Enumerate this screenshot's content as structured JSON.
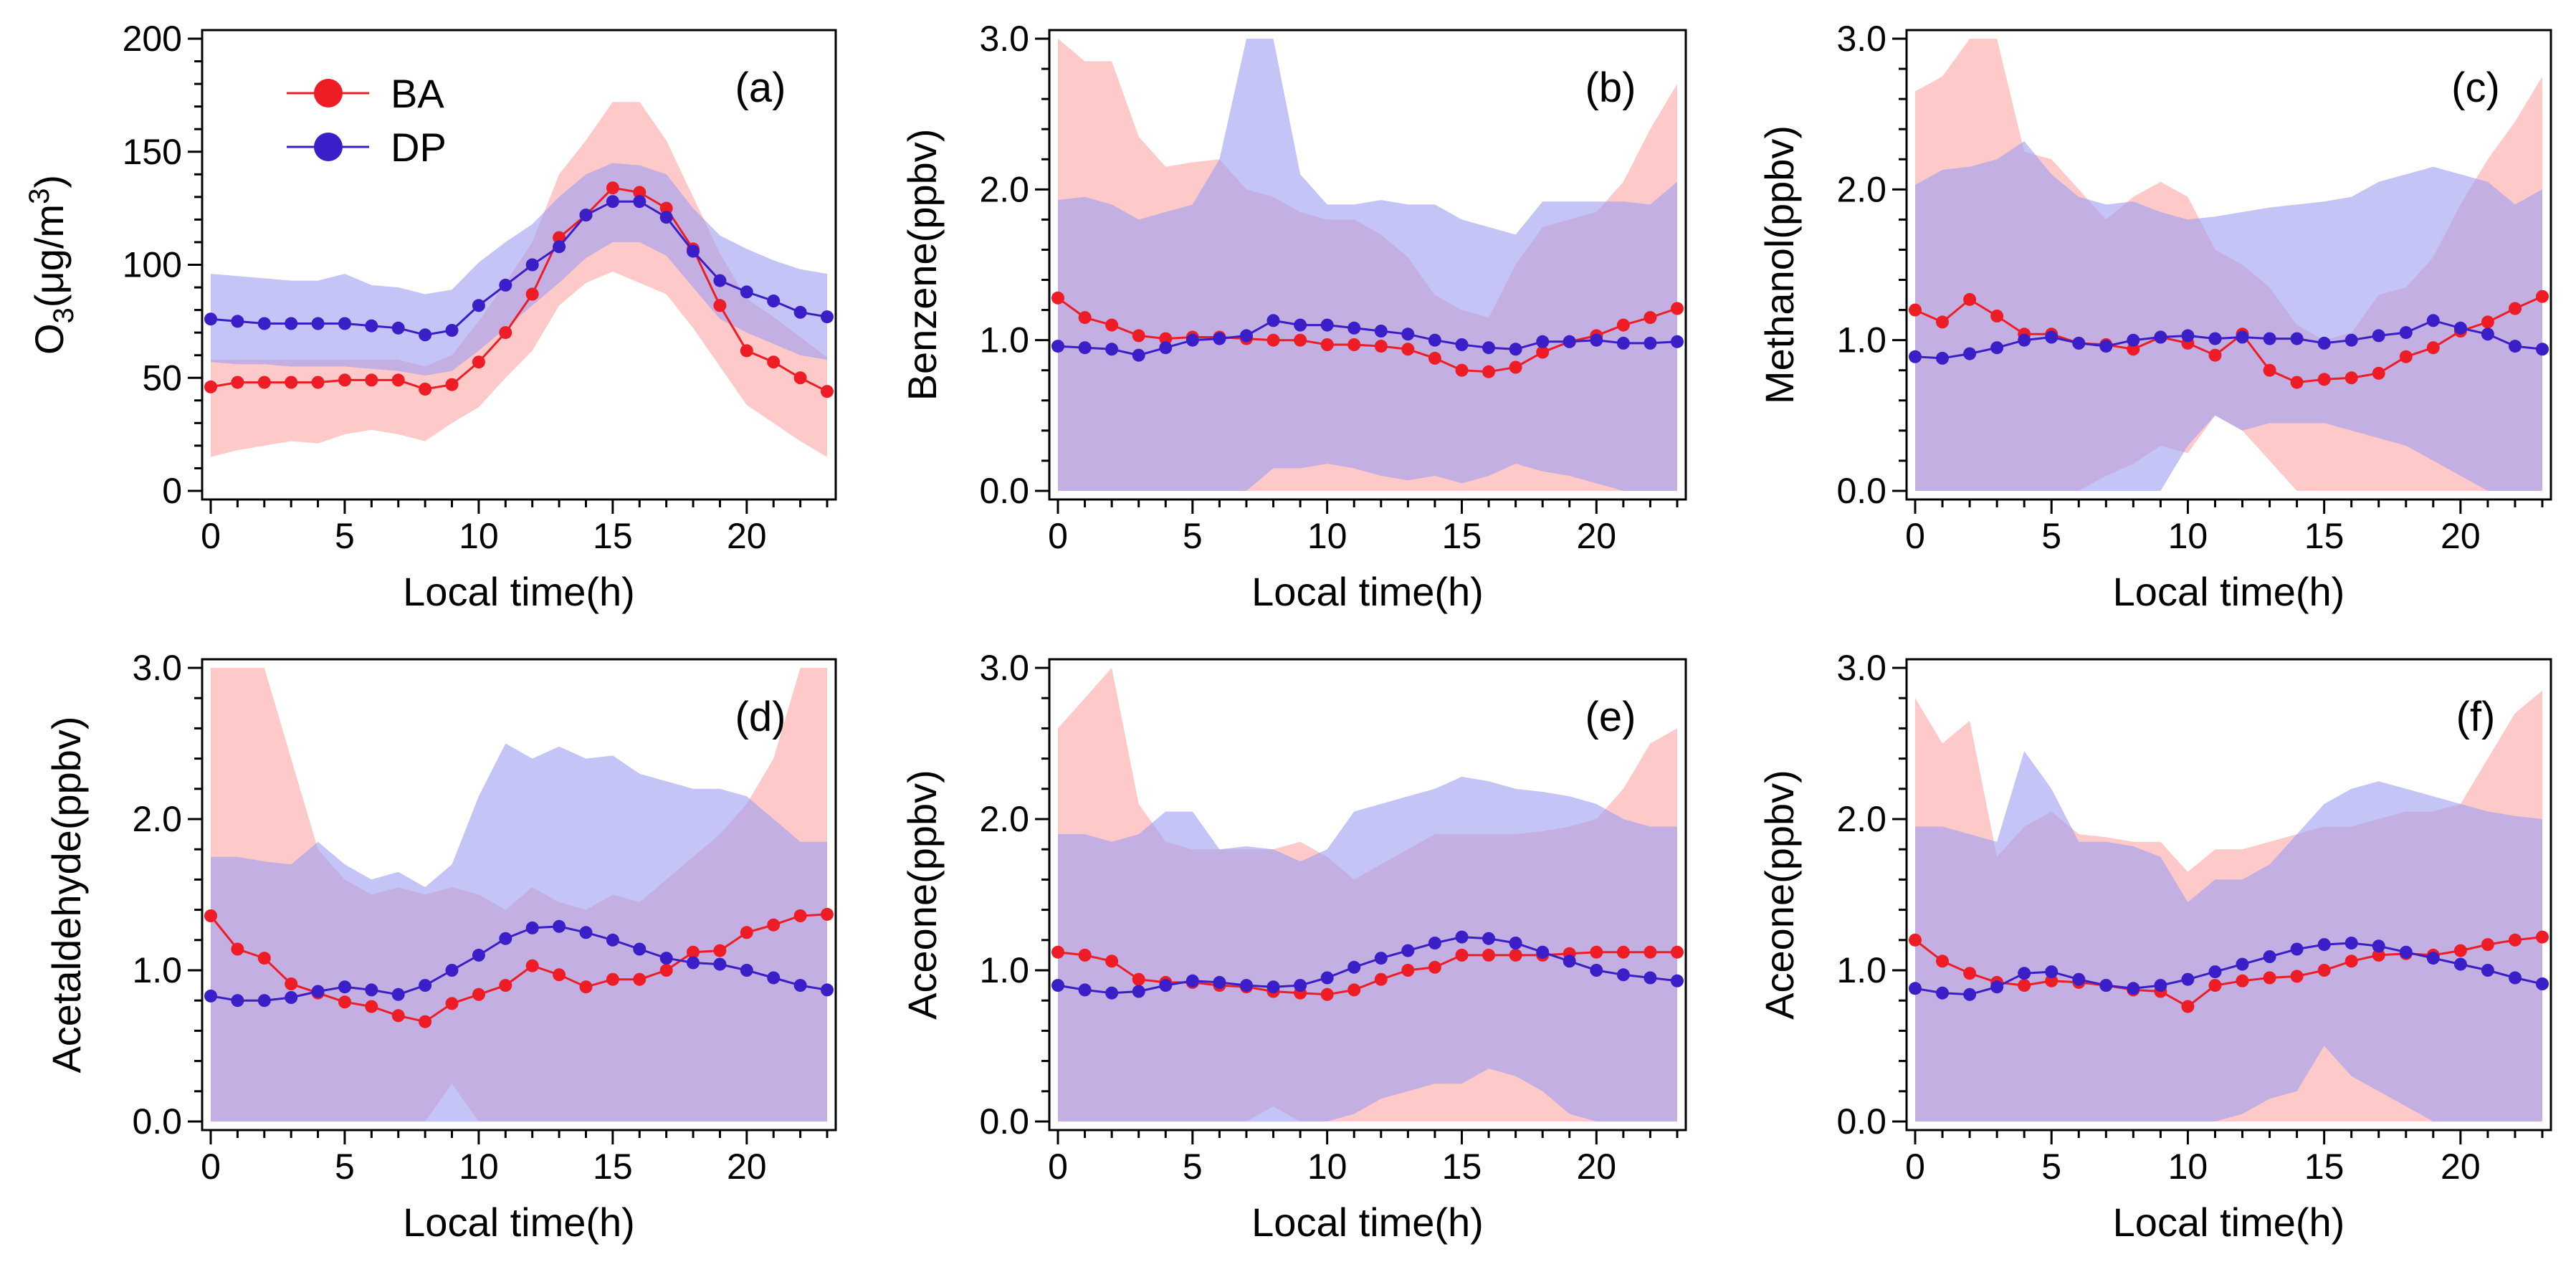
{
  "colors": {
    "BA": "#ee1c25",
    "DP": "#3a1ec8",
    "BA_band": "#fba8a8",
    "DP_band": "#9f9ff0"
  },
  "legend": {
    "BA": "BA",
    "DP": "DP"
  },
  "chart_data": [
    {
      "panel": "(a)",
      "type": "line",
      "title": "",
      "xlabel": "Local time(h)",
      "ylabel": "O3(μg/m3)",
      "ylabel_parts": {
        "a": "O",
        "sub": "3",
        "b": "(μg/m",
        "sup": "3",
        "c": ")"
      },
      "xlim": [
        0,
        23
      ],
      "ylim": [
        0,
        200
      ],
      "xticks": [
        0,
        5,
        10,
        15,
        20
      ],
      "yticks": [
        0,
        50,
        100,
        150,
        200
      ],
      "ytick_labels": [
        "0",
        "50",
        "100",
        "150",
        "200"
      ],
      "series": [
        {
          "name": "BA",
          "values": [
            46,
            48,
            48,
            48,
            48,
            49,
            49,
            49,
            45,
            47,
            57,
            70,
            87,
            112,
            122,
            134,
            132,
            125,
            107,
            82,
            62,
            57,
            50,
            44
          ],
          "upper": [
            58,
            58,
            58,
            58,
            58,
            58,
            58,
            58,
            55,
            60,
            75,
            92,
            110,
            140,
            155,
            172,
            172,
            155,
            130,
            105,
            85,
            77,
            68,
            59
          ],
          "lower": [
            15,
            18,
            20,
            22,
            21,
            25,
            27,
            25,
            22,
            30,
            37,
            50,
            62,
            82,
            92,
            97,
            92,
            87,
            72,
            55,
            38,
            30,
            22,
            15
          ]
        },
        {
          "name": "DP",
          "values": [
            76,
            75,
            74,
            74,
            74,
            74,
            73,
            72,
            69,
            71,
            82,
            91,
            100,
            108,
            122,
            128,
            128,
            121,
            106,
            93,
            88,
            84,
            79,
            77
          ],
          "upper": [
            96,
            95,
            94,
            93,
            93,
            96,
            91,
            90,
            87,
            89,
            101,
            110,
            118,
            130,
            140,
            145,
            144,
            140,
            125,
            113,
            107,
            102,
            98,
            96
          ],
          "lower": [
            57,
            56,
            56,
            55,
            55,
            55,
            54,
            53,
            51,
            53,
            62,
            72,
            82,
            92,
            103,
            110,
            110,
            104,
            90,
            76,
            70,
            65,
            60,
            58
          ]
        }
      ]
    },
    {
      "panel": "(b)",
      "type": "line",
      "title": "",
      "xlabel": "Local time(h)",
      "ylabel": "Benzene(ppbv)",
      "xlim": [
        0,
        23
      ],
      "ylim": [
        0,
        3
      ],
      "xticks": [
        0,
        5,
        10,
        15,
        20
      ],
      "yticks": [
        0,
        1,
        2,
        3
      ],
      "ytick_labels": [
        "0.0",
        "1.0",
        "2.0",
        "3.0"
      ],
      "series": [
        {
          "name": "BA",
          "values": [
            1.28,
            1.15,
            1.1,
            1.03,
            1.01,
            1.02,
            1.02,
            1.01,
            1.0,
            1.0,
            0.97,
            0.97,
            0.96,
            0.94,
            0.88,
            0.8,
            0.79,
            0.82,
            0.92,
            0.99,
            1.03,
            1.1,
            1.15,
            1.21
          ],
          "upper": [
            3.0,
            2.85,
            2.85,
            2.35,
            2.15,
            2.18,
            2.2,
            2.0,
            1.95,
            1.85,
            1.8,
            1.8,
            1.7,
            1.55,
            1.3,
            1.2,
            1.15,
            1.5,
            1.75,
            1.8,
            1.85,
            2.05,
            2.4,
            2.7
          ],
          "lower": [
            0.0,
            0.0,
            0.0,
            0.0,
            0.0,
            0.0,
            0.0,
            0.0,
            0.0,
            0.0,
            0.0,
            0.0,
            0.0,
            0.0,
            0.0,
            0.0,
            0.0,
            0.0,
            0.0,
            0.0,
            0.0,
            0.0,
            0.0,
            0.0
          ]
        },
        {
          "name": "DP",
          "values": [
            0.96,
            0.95,
            0.94,
            0.9,
            0.95,
            1.0,
            1.01,
            1.03,
            1.13,
            1.1,
            1.1,
            1.08,
            1.06,
            1.04,
            1.0,
            0.97,
            0.95,
            0.94,
            0.99,
            0.99,
            1.0,
            0.98,
            0.98,
            0.99
          ],
          "upper": [
            1.93,
            1.95,
            1.9,
            1.8,
            1.85,
            1.9,
            2.2,
            3.0,
            3.0,
            2.1,
            1.9,
            1.9,
            1.93,
            1.9,
            1.9,
            1.8,
            1.75,
            1.7,
            1.92,
            1.92,
            1.92,
            1.92,
            1.9,
            2.05
          ],
          "lower": [
            0.0,
            0.0,
            0.0,
            0.0,
            0.0,
            0.0,
            0.0,
            0.0,
            0.15,
            0.15,
            0.18,
            0.15,
            0.1,
            0.07,
            0.1,
            0.05,
            0.1,
            0.18,
            0.13,
            0.1,
            0.05,
            0.0,
            0.0,
            0.0
          ]
        }
      ]
    },
    {
      "panel": "(c)",
      "type": "line",
      "title": "",
      "xlabel": "Local time(h)",
      "ylabel": "Methanol(ppbv)",
      "xlim": [
        0,
        23
      ],
      "ylim": [
        0,
        3
      ],
      "xticks": [
        0,
        5,
        10,
        15,
        20
      ],
      "yticks": [
        0,
        1,
        2,
        3
      ],
      "ytick_labels": [
        "0.0",
        "1.0",
        "2.0",
        "3.0"
      ],
      "series": [
        {
          "name": "BA",
          "values": [
            1.2,
            1.12,
            1.27,
            1.16,
            1.04,
            1.04,
            0.98,
            0.97,
            0.94,
            1.02,
            0.98,
            0.9,
            1.04,
            0.8,
            0.72,
            0.74,
            0.75,
            0.78,
            0.89,
            0.95,
            1.06,
            1.12,
            1.21,
            1.29
          ],
          "upper": [
            2.65,
            2.75,
            3.0,
            3.0,
            2.25,
            2.2,
            2.0,
            1.8,
            1.95,
            2.05,
            1.95,
            1.6,
            1.5,
            1.35,
            1.1,
            1.0,
            1.05,
            1.3,
            1.35,
            1.55,
            1.9,
            2.2,
            2.45,
            2.75
          ],
          "lower": [
            0.0,
            0.0,
            0.0,
            0.0,
            0.0,
            0.0,
            0.0,
            0.1,
            0.18,
            0.3,
            0.25,
            0.5,
            0.4,
            0.2,
            0.0,
            0.0,
            0.0,
            0.0,
            0.0,
            0.0,
            0.0,
            0.0,
            0.0,
            0.0
          ]
        },
        {
          "name": "DP",
          "values": [
            0.89,
            0.88,
            0.91,
            0.95,
            1.0,
            1.02,
            0.98,
            0.96,
            1.0,
            1.02,
            1.03,
            1.01,
            1.02,
            1.01,
            1.01,
            0.98,
            1.0,
            1.03,
            1.05,
            1.13,
            1.08,
            1.04,
            0.96,
            0.94
          ],
          "upper": [
            2.03,
            2.13,
            2.15,
            2.2,
            2.32,
            2.1,
            1.95,
            1.9,
            1.92,
            1.85,
            1.8,
            1.82,
            1.85,
            1.88,
            1.9,
            1.92,
            1.95,
            2.05,
            2.1,
            2.15,
            2.1,
            2.05,
            1.9,
            2.0
          ],
          "lower": [
            0.0,
            0.0,
            0.0,
            0.0,
            0.0,
            0.0,
            0.0,
            0.0,
            0.0,
            0.0,
            0.3,
            0.5,
            0.4,
            0.45,
            0.45,
            0.45,
            0.4,
            0.35,
            0.3,
            0.2,
            0.1,
            0.0,
            0.0,
            0.0
          ]
        }
      ]
    },
    {
      "panel": "(d)",
      "type": "line",
      "title": "",
      "xlabel": "Local time(h)",
      "ylabel": "Acetaldehyde(ppbv)",
      "xlim": [
        0,
        23
      ],
      "ylim": [
        0,
        3
      ],
      "xticks": [
        0,
        5,
        10,
        15,
        20
      ],
      "yticks": [
        0,
        1,
        2,
        3
      ],
      "ytick_labels": [
        "0.0",
        "1.0",
        "2.0",
        "3.0"
      ],
      "series": [
        {
          "name": "BA",
          "values": [
            1.36,
            1.14,
            1.08,
            0.91,
            0.85,
            0.79,
            0.76,
            0.7,
            0.66,
            0.78,
            0.84,
            0.9,
            1.03,
            0.97,
            0.89,
            0.94,
            0.94,
            1.0,
            1.12,
            1.13,
            1.25,
            1.3,
            1.36,
            1.37
          ],
          "upper": [
            3.0,
            3.0,
            3.0,
            2.4,
            1.8,
            1.6,
            1.5,
            1.55,
            1.5,
            1.55,
            1.5,
            1.4,
            1.55,
            1.45,
            1.4,
            1.5,
            1.45,
            1.6,
            1.75,
            1.9,
            2.1,
            2.4,
            3.0,
            3.0
          ],
          "lower": [
            0.0,
            0.0,
            0.0,
            0.0,
            0.0,
            0.0,
            0.0,
            0.0,
            0.0,
            0.25,
            0.0,
            0.0,
            0.0,
            0.0,
            0.0,
            0.0,
            0.0,
            0.0,
            0.0,
            0.0,
            0.0,
            0.0,
            0.0,
            0.0
          ]
        },
        {
          "name": "DP",
          "values": [
            0.83,
            0.8,
            0.8,
            0.82,
            0.86,
            0.89,
            0.87,
            0.84,
            0.9,
            1.0,
            1.1,
            1.21,
            1.28,
            1.29,
            1.25,
            1.2,
            1.14,
            1.08,
            1.05,
            1.04,
            1.0,
            0.95,
            0.9,
            0.87
          ],
          "upper": [
            1.75,
            1.75,
            1.72,
            1.7,
            1.85,
            1.7,
            1.6,
            1.65,
            1.55,
            1.7,
            2.15,
            2.5,
            2.4,
            2.48,
            2.4,
            2.42,
            2.3,
            2.25,
            2.2,
            2.2,
            2.15,
            2.0,
            1.85,
            1.85
          ]
        }
      ]
    },
    {
      "panel": "(e)",
      "type": "line",
      "title": "",
      "xlabel": "Local time(h)",
      "ylabel": "Aceone(ppbv)",
      "xlim": [
        0,
        23
      ],
      "ylim": [
        0,
        3
      ],
      "xticks": [
        0,
        5,
        10,
        15,
        20
      ],
      "yticks": [
        0,
        1,
        2,
        3
      ],
      "ytick_labels": [
        "0.0",
        "1.0",
        "2.0",
        "3.0"
      ],
      "series": [
        {
          "name": "BA",
          "values": [
            1.12,
            1.1,
            1.06,
            0.94,
            0.92,
            0.92,
            0.9,
            0.89,
            0.86,
            0.85,
            0.84,
            0.87,
            0.94,
            1.0,
            1.02,
            1.1,
            1.1,
            1.1,
            1.1,
            1.11,
            1.12,
            1.12,
            1.12,
            1.12
          ],
          "upper": [
            2.6,
            2.8,
            3.0,
            2.1,
            1.85,
            1.8,
            1.8,
            1.8,
            1.8,
            1.85,
            1.75,
            1.6,
            1.7,
            1.8,
            1.9,
            1.9,
            1.9,
            1.9,
            1.92,
            1.95,
            2.0,
            2.2,
            2.5,
            2.6
          ],
          "lower": [
            0.0,
            0.0,
            0.0,
            0.0,
            0.0,
            0.0,
            0.0,
            0.0,
            0.1,
            0.0,
            0.0,
            0.0,
            0.0,
            0.0,
            0.0,
            0.0,
            0.0,
            0.0,
            0.0,
            0.0,
            0.0,
            0.0,
            0.0,
            0.0
          ]
        },
        {
          "name": "DP",
          "values": [
            0.9,
            0.87,
            0.85,
            0.86,
            0.9,
            0.93,
            0.92,
            0.9,
            0.89,
            0.9,
            0.95,
            1.02,
            1.08,
            1.13,
            1.18,
            1.22,
            1.21,
            1.18,
            1.12,
            1.06,
            1.0,
            0.97,
            0.95,
            0.93
          ],
          "upper": [
            1.9,
            1.9,
            1.85,
            1.9,
            2.05,
            2.05,
            1.8,
            1.82,
            1.8,
            1.72,
            1.8,
            2.05,
            2.1,
            2.15,
            2.2,
            2.28,
            2.25,
            2.2,
            2.18,
            2.15,
            2.1,
            2.0,
            1.95,
            1.95
          ],
          "lower": [
            0.0,
            0.0,
            0.0,
            0.0,
            0.0,
            0.0,
            0.0,
            0.0,
            0.0,
            0.0,
            0.0,
            0.05,
            0.15,
            0.2,
            0.25,
            0.25,
            0.35,
            0.3,
            0.2,
            0.05,
            0.0,
            0.0,
            0.0,
            0.0
          ]
        }
      ]
    },
    {
      "panel": "(f)",
      "type": "line",
      "title": "",
      "xlabel": "Local time(h)",
      "ylabel": "Aceone(ppbv)",
      "xlim": [
        0,
        23
      ],
      "ylim": [
        0,
        3
      ],
      "xticks": [
        0,
        5,
        10,
        15,
        20
      ],
      "yticks": [
        0,
        1,
        2,
        3
      ],
      "ytick_labels": [
        "0.0",
        "1.0",
        "2.0",
        "3.0"
      ],
      "series": [
        {
          "name": "BA",
          "values": [
            1.2,
            1.06,
            0.98,
            0.92,
            0.9,
            0.93,
            0.92,
            0.9,
            0.87,
            0.86,
            0.76,
            0.9,
            0.93,
            0.95,
            0.96,
            1.0,
            1.06,
            1.1,
            1.11,
            1.1,
            1.13,
            1.17,
            1.2,
            1.22
          ],
          "upper": [
            2.8,
            2.5,
            2.65,
            1.75,
            1.95,
            2.05,
            1.9,
            1.88,
            1.85,
            1.85,
            1.65,
            1.8,
            1.8,
            1.85,
            1.9,
            1.95,
            1.95,
            2.0,
            2.05,
            2.05,
            2.1,
            2.4,
            2.7,
            2.85
          ]
        },
        {
          "name": "DP",
          "values": [
            0.88,
            0.85,
            0.84,
            0.89,
            0.98,
            0.99,
            0.94,
            0.9,
            0.88,
            0.9,
            0.94,
            0.99,
            1.04,
            1.09,
            1.14,
            1.17,
            1.18,
            1.16,
            1.12,
            1.08,
            1.04,
            1.0,
            0.95,
            0.91
          ],
          "upper": [
            1.95,
            1.95,
            1.9,
            1.85,
            2.45,
            2.2,
            1.85,
            1.85,
            1.82,
            1.75,
            1.45,
            1.6,
            1.6,
            1.7,
            1.9,
            2.1,
            2.2,
            2.25,
            2.2,
            2.15,
            2.1,
            2.05,
            2.02,
            2.0
          ],
          "lower": [
            0.0,
            0.0,
            0.0,
            0.0,
            0.0,
            0.0,
            0.0,
            0.0,
            0.0,
            0.0,
            0.0,
            0.0,
            0.05,
            0.15,
            0.2,
            0.5,
            0.3,
            0.2,
            0.1,
            0.0,
            0.0,
            0.0,
            0.0,
            0.0
          ]
        }
      ]
    }
  ]
}
